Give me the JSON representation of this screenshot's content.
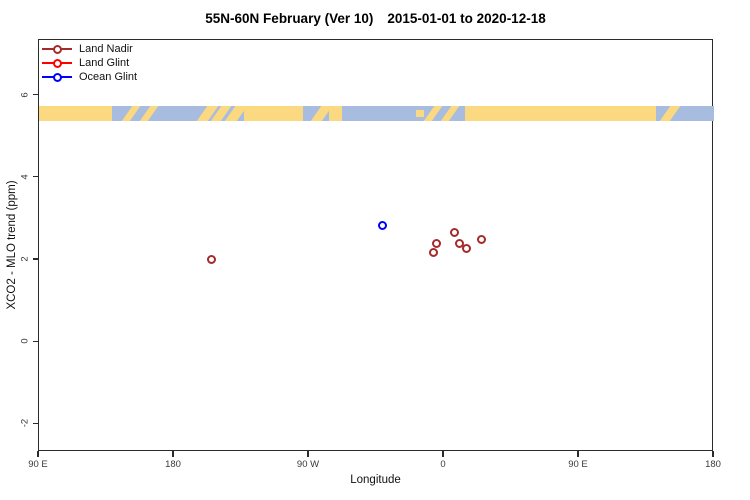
{
  "header": {
    "title_main": "55N-60N February (Ver 10)",
    "title_dates": "2015-01-01 to 2020-12-18"
  },
  "legend": {
    "items": [
      {
        "label": "Land Nadir",
        "color": "#A52A2A"
      },
      {
        "label": "Land Glint",
        "color": "#FF0000"
      },
      {
        "label": "Ocean Glint",
        "color": "#0000FF"
      }
    ]
  },
  "chart_data": {
    "type": "scatter",
    "title": "55N-60N February (Ver 10)  2015-01-01 to 2020-12-18",
    "xlabel": "Longitude",
    "ylabel": "XCO2 - MLO trend (ppm)",
    "xlim_unwrapped_deg_east": [
      90,
      540
    ],
    "ylim": [
      -2.67,
      7.35
    ],
    "x_ticks": [
      {
        "pos": 90,
        "label": "90 E"
      },
      {
        "pos": 180,
        "label": "180"
      },
      {
        "pos": 270,
        "label": "90 W"
      },
      {
        "pos": 360,
        "label": "0"
      },
      {
        "pos": 450,
        "label": "90 E"
      },
      {
        "pos": 540,
        "label": "180"
      }
    ],
    "y_ticks": [
      6,
      4,
      2,
      0,
      -2
    ],
    "grid": false,
    "legend_position": "top-left",
    "series": [
      {
        "name": "Land Nadir",
        "color": "#A52A2A",
        "points": [
          {
            "lon": -154.7,
            "y": 2.02
          },
          {
            "lon": -7.3,
            "y": 2.17
          },
          {
            "lon": -4.7,
            "y": 2.41
          },
          {
            "lon": 6.7,
            "y": 2.66
          },
          {
            "lon": 10.0,
            "y": 2.41
          },
          {
            "lon": 15.3,
            "y": 2.27
          },
          {
            "lon": 25.3,
            "y": 2.51
          }
        ]
      },
      {
        "name": "Land Glint",
        "color": "#FF0000",
        "points": []
      },
      {
        "name": "Ocean Glint",
        "color": "#0000FF",
        "points": [
          {
            "lon": -41.3,
            "y": 2.85
          }
        ]
      }
    ],
    "map_band": {
      "description": "world coastline strip for 55N-60N latitude band",
      "y_top": 5.74,
      "y_bottom": 5.37,
      "ocean_color": "#A7BCDF",
      "land_color": "#FBD981",
      "land_patches_unwrapped_deg": [
        {
          "from": 90,
          "to": 138.5,
          "kind": "block"
        },
        {
          "from": 148.5,
          "to": 154,
          "kind": "slash"
        },
        {
          "from": 160.5,
          "to": 166,
          "kind": "slash"
        },
        {
          "from": 198.5,
          "to": 205.5,
          "kind": "slash"
        },
        {
          "from": 208,
          "to": 214.5,
          "kind": "slash"
        },
        {
          "from": 217.5,
          "to": 225.5,
          "kind": "slash"
        },
        {
          "from": 226.5,
          "to": 266,
          "kind": "block"
        },
        {
          "from": 274.5,
          "to": 282,
          "kind": "slash"
        },
        {
          "from": 283.5,
          "to": 292,
          "kind": "block"
        },
        {
          "from": 341.5,
          "to": 346.5,
          "kind": "speck"
        },
        {
          "from": 350,
          "to": 355.5,
          "kind": "slash"
        },
        {
          "from": 361.5,
          "to": 367,
          "kind": "slash"
        },
        {
          "from": 374,
          "to": 501,
          "kind": "block"
        },
        {
          "from": 507.5,
          "to": 514,
          "kind": "slash"
        }
      ]
    }
  }
}
